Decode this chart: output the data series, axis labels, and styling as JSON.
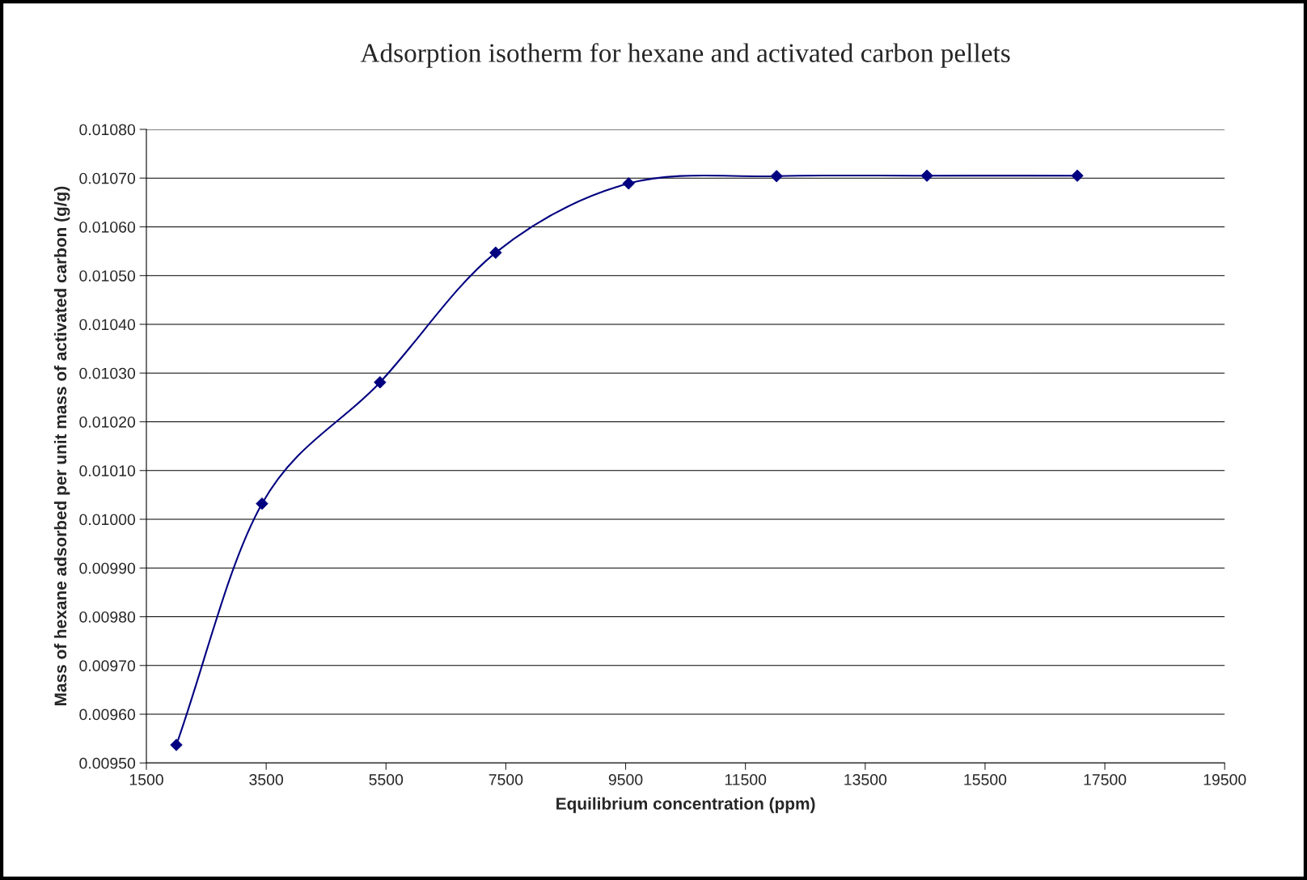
{
  "chart_data": {
    "type": "line",
    "title": "Adsorption isotherm for hexane and activated carbon pellets",
    "xlabel": "Equilibrium concentration (ppm)",
    "ylabel": "Mass of hexane adsorbed per unit mass of activated carbon (g/g)",
    "x": [
      2000,
      3430,
      5400,
      7330,
      9550,
      12020,
      14530,
      17040
    ],
    "series": [
      {
        "color": "#000080",
        "values": [
          0.009537,
          0.010032,
          0.010281,
          0.010547,
          0.010689,
          0.010704,
          0.010705,
          0.010705
        ]
      }
    ],
    "marker": "diamond",
    "line_style": "solid",
    "grid": "y",
    "legend": false,
    "xlim": [
      1500,
      19500
    ],
    "xticks": [
      1500,
      3500,
      5500,
      7500,
      9500,
      11500,
      13500,
      15500,
      17500,
      19500
    ],
    "ylim": [
      0.0095,
      0.0108
    ],
    "yticks": [
      {
        "value": 0.0095,
        "label": "0.00950"
      },
      {
        "value": 0.0096,
        "label": "0.00960"
      },
      {
        "value": 0.0097,
        "label": "0.00970"
      },
      {
        "value": 0.0098,
        "label": "0.00980"
      },
      {
        "value": 0.0099,
        "label": "0.00990"
      },
      {
        "value": 0.01,
        "label": "0.01000"
      },
      {
        "value": 0.0101,
        "label": "0.01010"
      },
      {
        "value": 0.0102,
        "label": "0.01020"
      },
      {
        "value": 0.0103,
        "label": "0.01030"
      },
      {
        "value": 0.0104,
        "label": "0.01040"
      },
      {
        "value": 0.0105,
        "label": "0.01050"
      },
      {
        "value": 0.0106,
        "label": "0.01060"
      },
      {
        "value": 0.0107,
        "label": "0.01070"
      },
      {
        "value": 0.0108,
        "label": "0.01080"
      }
    ]
  }
}
